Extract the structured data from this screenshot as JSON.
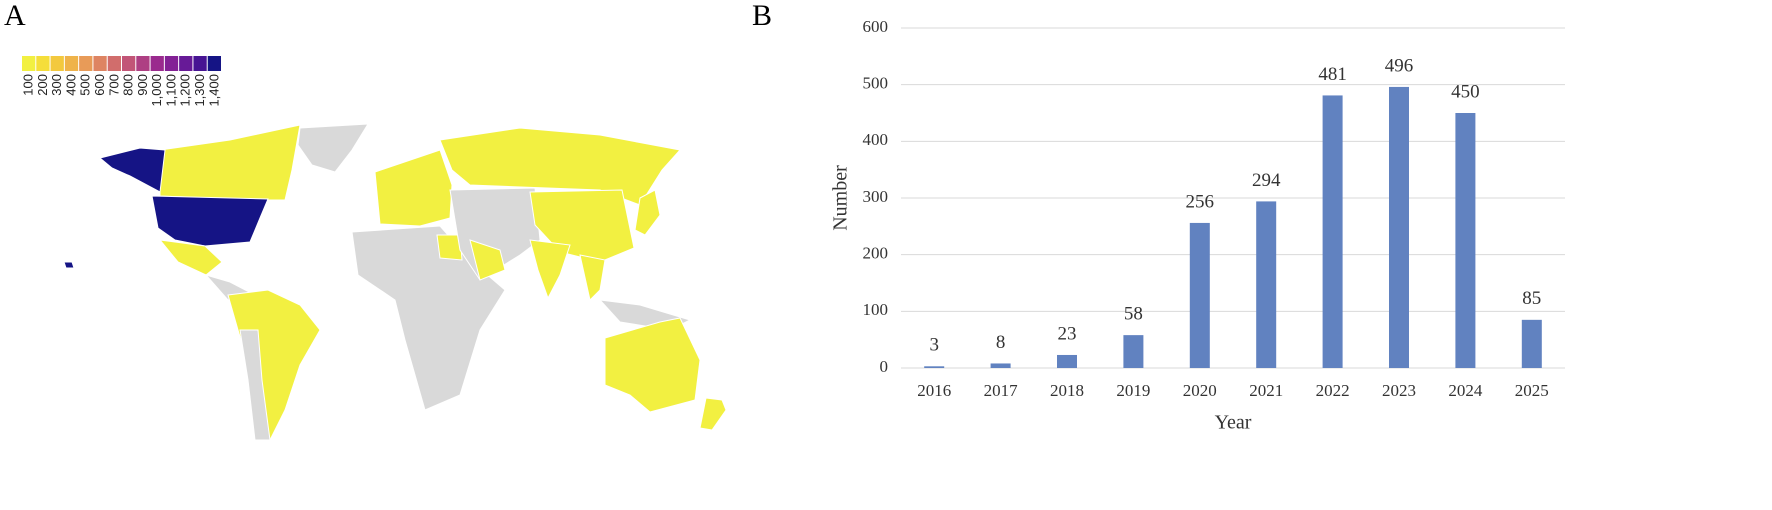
{
  "chart_data": [
    {
      "type": "map",
      "panel": "A",
      "legend": {
        "ticks": [
          100,
          200,
          300,
          400,
          500,
          600,
          700,
          800,
          900,
          {
            "value": 1000,
            "label": "1,000"
          },
          {
            "value": 1100,
            "label": "1,100"
          },
          {
            "value": 1200,
            "label": "1,200"
          },
          {
            "value": 1300,
            "label": "1,300"
          },
          {
            "value": 1400,
            "label": "1,400"
          }
        ],
        "colors": [
          "#f2f041",
          "#f5de3a",
          "#f3c93e",
          "#efb34a",
          "#e89b58",
          "#de8462",
          "#d16d6c",
          "#c25577",
          "#ae3f83",
          "#9a2a8e",
          "#832195",
          "#671a97",
          "#471493",
          "#151485"
        ]
      }
    },
    {
      "type": "bar",
      "panel": "B",
      "categories": [
        "2016",
        "2017",
        "2018",
        "2019",
        "2020",
        "2021",
        "2022",
        "2023",
        "2024",
        "2025"
      ],
      "values": [
        3,
        8,
        23,
        58,
        256,
        294,
        481,
        496,
        450,
        85
      ],
      "color": "#6182c0",
      "xlabel": "Year",
      "ylabel": "Number",
      "ylim": [
        0,
        600
      ],
      "yticks": [
        0,
        100,
        200,
        300,
        400,
        500,
        600
      ],
      "grid": true
    }
  ]
}
